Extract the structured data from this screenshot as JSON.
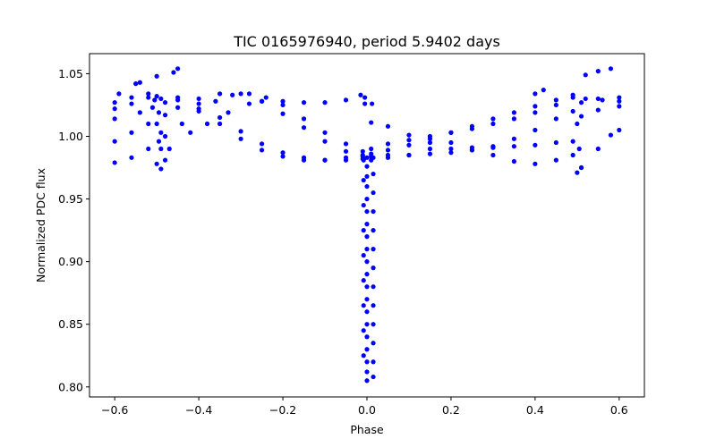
{
  "chart_data": {
    "type": "scatter",
    "title": "TIC 0165976940, period 5.9402 days",
    "xlabel": "Phase",
    "ylabel": "Normalized PDC flux",
    "xlim": [
      -0.66,
      0.66
    ],
    "ylim": [
      0.792,
      1.066
    ],
    "xticks": [
      -0.6,
      -0.4,
      -0.2,
      0.0,
      0.2,
      0.4,
      0.6
    ],
    "xtick_labels": [
      "−0.6",
      "−0.4",
      "−0.2",
      "0.0",
      "0.2",
      "0.4",
      "0.6"
    ],
    "yticks": [
      0.8,
      0.85,
      0.9,
      0.95,
      1.0,
      1.05
    ],
    "ytick_labels": [
      "0.80",
      "0.85",
      "0.90",
      "0.95",
      "1.00",
      "1.05"
    ],
    "grid": false,
    "marker_color": "#0000ff",
    "series": [
      {
        "points": [
          [
            -0.6,
            0.996
          ],
          [
            -0.56,
            1.003
          ],
          [
            -0.52,
            1.01
          ],
          [
            -0.48,
            1.017
          ],
          [
            -0.45,
            1.023
          ],
          [
            -0.4,
            1.03
          ],
          [
            -0.35,
            1.034
          ],
          [
            -0.3,
            1.034
          ],
          [
            -0.25,
            1.028
          ],
          [
            -0.2,
            1.018
          ],
          [
            -0.15,
            1.007
          ],
          [
            -0.1,
            0.996
          ],
          [
            -0.05,
            0.988
          ],
          [
            -0.01,
            0.984
          ],
          [
            -0.6,
            0.979
          ],
          [
            -0.56,
            0.983
          ],
          [
            -0.52,
            0.99
          ],
          [
            -0.48,
            1.0
          ],
          [
            -0.44,
            1.01
          ],
          [
            -0.4,
            1.02
          ],
          [
            -0.36,
            1.028
          ],
          [
            -0.32,
            1.033
          ],
          [
            -0.28,
            1.034
          ],
          [
            -0.24,
            1.031
          ],
          [
            -0.2,
            1.028
          ],
          [
            -0.15,
            1.027
          ],
          [
            -0.1,
            1.027
          ],
          [
            -0.05,
            1.029
          ],
          [
            -0.015,
            1.033
          ],
          [
            -0.6,
            1.022
          ],
          [
            -0.56,
            1.026
          ],
          [
            -0.52,
            1.031
          ],
          [
            -0.505,
            1.029
          ],
          [
            -0.5,
            1.01
          ],
          [
            -0.495,
            0.996
          ],
          [
            -0.49,
            0.99
          ],
          [
            -0.48,
            1.027
          ],
          [
            -0.45,
            1.031
          ],
          [
            -0.4,
            1.026
          ],
          [
            -0.35,
            1.015
          ],
          [
            -0.3,
            1.004
          ],
          [
            -0.25,
            0.994
          ],
          [
            -0.2,
            0.987
          ],
          [
            -0.15,
            0.983
          ],
          [
            -0.1,
            0.981
          ],
          [
            -0.05,
            0.981
          ],
          [
            -0.01,
            0.982
          ],
          [
            -0.6,
            1.027
          ],
          [
            -0.56,
            1.031
          ],
          [
            -0.52,
            1.034
          ],
          [
            -0.5,
            1.032
          ],
          [
            -0.49,
            1.03
          ],
          [
            -0.45,
            1.029
          ],
          [
            -0.4,
            1.022
          ],
          [
            -0.35,
            1.01
          ],
          [
            -0.3,
            0.998
          ],
          [
            -0.25,
            0.989
          ],
          [
            -0.2,
            0.984
          ],
          [
            -0.15,
            0.981
          ],
          [
            -0.1,
            0.981
          ],
          [
            -0.05,
            0.983
          ],
          [
            -0.01,
            0.985
          ],
          [
            -0.6,
            1.014
          ],
          [
            -0.54,
            1.019
          ],
          [
            -0.51,
            1.023
          ],
          [
            -0.495,
            1.019
          ],
          [
            -0.49,
            1.003
          ],
          [
            -0.47,
            0.99
          ],
          [
            -0.42,
            1.003
          ],
          [
            -0.38,
            1.01
          ],
          [
            -0.33,
            1.019
          ],
          [
            -0.28,
            1.026
          ],
          [
            -0.25,
            1.028
          ],
          [
            -0.2,
            1.025
          ],
          [
            -0.15,
            1.014
          ],
          [
            -0.1,
            1.003
          ],
          [
            -0.05,
            0.994
          ],
          [
            -0.01,
            0.988
          ],
          [
            -0.59,
            1.034
          ],
          [
            -0.55,
            1.042
          ],
          [
            -0.54,
            1.043
          ],
          [
            -0.5,
            1.048
          ],
          [
            -0.46,
            1.051
          ],
          [
            -0.45,
            1.054
          ],
          [
            -0.5,
            0.978
          ],
          [
            -0.49,
            0.974
          ],
          [
            -0.48,
            0.981
          ],
          [
            0.01,
            0.986
          ],
          [
            0.05,
            0.989
          ],
          [
            0.1,
            0.993
          ],
          [
            0.15,
            0.998
          ],
          [
            0.2,
            1.003
          ],
          [
            0.25,
            1.008
          ],
          [
            0.3,
            1.014
          ],
          [
            0.35,
            1.019
          ],
          [
            0.4,
            1.024
          ],
          [
            0.45,
            1.029
          ],
          [
            0.49,
            1.033
          ],
          [
            0.5,
            1.01
          ],
          [
            0.505,
            0.99
          ],
          [
            0.51,
            1.027
          ],
          [
            0.55,
            1.03
          ],
          [
            0.6,
            1.028
          ],
          [
            0.01,
            0.99
          ],
          [
            0.05,
            0.994
          ],
          [
            0.1,
            0.997
          ],
          [
            0.15,
            1.0
          ],
          [
            0.2,
            1.003
          ],
          [
            0.25,
            1.006
          ],
          [
            0.3,
            1.01
          ],
          [
            0.35,
            1.014
          ],
          [
            0.4,
            1.019
          ],
          [
            0.45,
            1.025
          ],
          [
            0.49,
            1.031
          ],
          [
            0.52,
            1.03
          ],
          [
            0.56,
            1.029
          ],
          [
            0.6,
            1.031
          ],
          [
            0.01,
            0.984
          ],
          [
            0.05,
            0.985
          ],
          [
            0.1,
            0.985
          ],
          [
            0.15,
            0.986
          ],
          [
            0.2,
            0.987
          ],
          [
            0.25,
            0.989
          ],
          [
            0.3,
            0.991
          ],
          [
            0.35,
            0.992
          ],
          [
            0.4,
            0.993
          ],
          [
            0.45,
            0.995
          ],
          [
            0.49,
            0.996
          ],
          [
            0.51,
            0.975
          ],
          [
            0.55,
            0.99
          ],
          [
            0.58,
            1.001
          ],
          [
            0.6,
            1.005
          ],
          [
            0.01,
            0.981
          ],
          [
            0.05,
            0.983
          ],
          [
            0.1,
            0.985
          ],
          [
            0.15,
            0.99
          ],
          [
            0.2,
            0.995
          ],
          [
            0.25,
            0.991
          ],
          [
            0.3,
            0.985
          ],
          [
            0.35,
            0.98
          ],
          [
            0.4,
            0.978
          ],
          [
            0.45,
            0.981
          ],
          [
            0.49,
            0.985
          ],
          [
            0.01,
            1.011
          ],
          [
            0.05,
            1.008
          ],
          [
            0.1,
            1.001
          ],
          [
            0.15,
            0.995
          ],
          [
            0.2,
            0.99
          ],
          [
            0.25,
            0.989
          ],
          [
            0.3,
            0.992
          ],
          [
            0.35,
            0.998
          ],
          [
            0.4,
            1.005
          ],
          [
            0.45,
            1.014
          ],
          [
            0.49,
            1.02
          ],
          [
            0.51,
            1.016
          ],
          [
            0.55,
            1.021
          ],
          [
            0.6,
            1.024
          ],
          [
            0.52,
            1.049
          ],
          [
            0.55,
            1.052
          ],
          [
            0.58,
            1.054
          ],
          [
            0.4,
            1.034
          ],
          [
            0.42,
            1.037
          ],
          [
            0.5,
            0.971
          ],
          [
            0.51,
            0.975
          ],
          [
            0.0,
            0.983
          ],
          [
            0.0,
            0.976
          ],
          [
            0.0,
            0.968
          ],
          [
            0.0,
            0.96
          ],
          [
            0.0,
            0.95
          ],
          [
            0.0,
            0.94
          ],
          [
            0.0,
            0.93
          ],
          [
            0.0,
            0.92
          ],
          [
            0.0,
            0.91
          ],
          [
            0.0,
            0.9
          ],
          [
            0.0,
            0.89
          ],
          [
            0.0,
            0.88
          ],
          [
            0.0,
            0.87
          ],
          [
            0.0,
            0.86
          ],
          [
            0.0,
            0.85
          ],
          [
            0.0,
            0.84
          ],
          [
            0.0,
            0.83
          ],
          [
            0.0,
            0.82
          ],
          [
            0.0,
            0.812
          ],
          [
            0.0,
            0.805
          ],
          [
            0.015,
            0.983
          ],
          [
            0.015,
            0.97
          ],
          [
            0.015,
            0.955
          ],
          [
            0.015,
            0.94
          ],
          [
            0.015,
            0.925
          ],
          [
            0.015,
            0.91
          ],
          [
            0.015,
            0.895
          ],
          [
            0.015,
            0.88
          ],
          [
            0.015,
            0.865
          ],
          [
            0.015,
            0.85
          ],
          [
            0.015,
            0.835
          ],
          [
            0.015,
            0.82
          ],
          [
            0.015,
            0.808
          ],
          [
            -0.008,
            0.981
          ],
          [
            -0.008,
            0.965
          ],
          [
            -0.008,
            0.945
          ],
          [
            -0.008,
            0.925
          ],
          [
            -0.008,
            0.905
          ],
          [
            -0.008,
            0.885
          ],
          [
            -0.008,
            0.865
          ],
          [
            -0.008,
            0.845
          ],
          [
            -0.008,
            0.825
          ],
          [
            -0.005,
            1.026
          ],
          [
            -0.005,
            1.031
          ],
          [
            0.012,
            1.026
          ]
        ]
      }
    ]
  }
}
